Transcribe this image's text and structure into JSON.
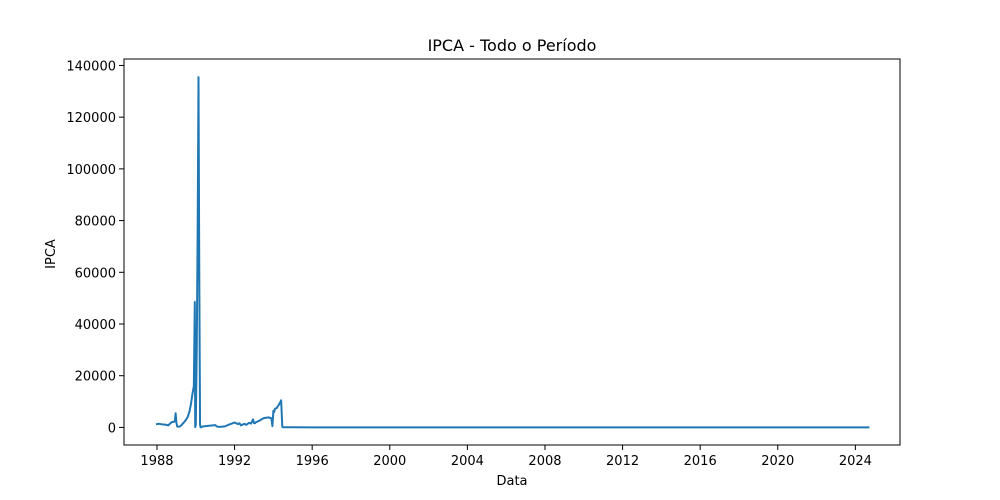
{
  "chart_data": {
    "type": "line",
    "title": "IPCA - Todo o Período",
    "xlabel": "Data",
    "ylabel": "IPCA",
    "xlim": [
      1986.3,
      2026.3
    ],
    "ylim": [
      -6800,
      142500
    ],
    "xticks": [
      1988,
      1992,
      1996,
      2000,
      2004,
      2008,
      2012,
      2016,
      2020,
      2024
    ],
    "yticks": [
      0,
      20000,
      40000,
      60000,
      80000,
      100000,
      120000,
      140000
    ],
    "grid": false,
    "legend": "none",
    "line_color": "#1f77b4",
    "series": [
      {
        "x": [
          1988.0,
          1988.08,
          1988.25,
          1988.42,
          1988.58,
          1988.75,
          1988.92,
          1988.96,
          1989.0,
          1989.04,
          1989.08,
          1989.17,
          1989.25,
          1989.33,
          1989.42,
          1989.5,
          1989.58,
          1989.67,
          1989.75,
          1989.83,
          1989.9,
          1989.95,
          1989.97,
          1990.0,
          1990.05,
          1990.1,
          1990.14,
          1990.18,
          1990.22,
          1990.25,
          1990.3,
          1990.33,
          1990.5,
          1990.75,
          1991.0,
          1991.1,
          1991.25,
          1991.5,
          1991.75,
          1992.0,
          1992.17,
          1992.25,
          1992.33,
          1992.5,
          1992.6,
          1992.75,
          1992.85,
          1992.95,
          1993.0,
          1993.05,
          1993.1,
          1993.25,
          1993.5,
          1993.75,
          1993.9,
          1993.95,
          1994.0,
          1994.04,
          1994.08,
          1994.17,
          1994.25,
          1994.33,
          1994.4,
          1994.46,
          1994.5,
          1994.55,
          1995.0,
          1996.0,
          1998.0,
          2000.0,
          2002.0,
          2003.0,
          2004.0,
          2006.0,
          2008.0,
          2010.0,
          2012.0,
          2014.0,
          2016.0,
          2018.0,
          2020.0,
          2022.0,
          2024.0,
          2024.67
        ],
        "y": [
          1300,
          1400,
          1200,
          1100,
          800,
          2000,
          2300,
          5500,
          2000,
          400,
          300,
          300,
          800,
          1500,
          2200,
          3000,
          4000,
          6000,
          9000,
          13000,
          16000,
          48500,
          100,
          1000,
          30000,
          80000,
          135500,
          60000,
          1000,
          0,
          200,
          300,
          500,
          700,
          900,
          300,
          200,
          400,
          1200,
          1900,
          1300,
          1600,
          800,
          1400,
          1000,
          1800,
          1500,
          3100,
          1700,
          1600,
          2000,
          2500,
          3600,
          3900,
          3500,
          500,
          6400,
          6000,
          7200,
          7500,
          8400,
          9400,
          10500,
          200,
          100,
          50,
          50,
          40,
          30,
          20,
          20,
          30,
          20,
          20,
          30,
          20,
          20,
          30,
          20,
          20,
          30,
          40,
          30,
          30
        ]
      }
    ]
  }
}
